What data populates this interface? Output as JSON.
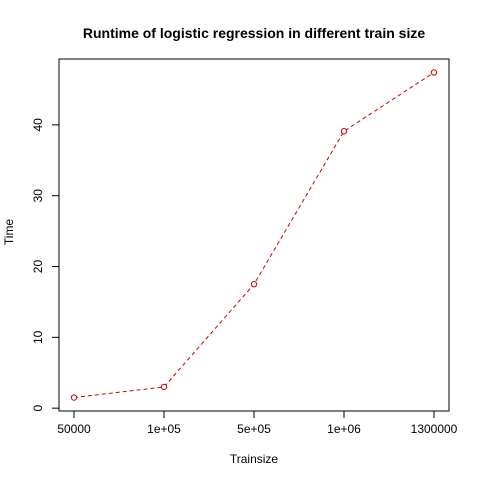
{
  "chart_data": {
    "type": "line",
    "title": "Runtime of logistic regression in different train size",
    "xlabel": "Trainsize",
    "ylabel": "Time",
    "categories": [
      "50000",
      "1e+05",
      "5e+05",
      "1e+06",
      "1300000"
    ],
    "series": [
      {
        "values": [
          1.5,
          3.0,
          17.5,
          39.1,
          47.4
        ]
      }
    ],
    "y_ticks": [
      "0",
      "10",
      "20",
      "30",
      "40"
    ],
    "y_tick_values": [
      0,
      10,
      20,
      30,
      40
    ],
    "ylim": [
      -0.4,
      49.3
    ],
    "grid": false,
    "legend": "none",
    "line_style": "dashed",
    "marker": "open-circle",
    "colors": {
      "series": "#cc0000",
      "axis": "#000000"
    }
  }
}
